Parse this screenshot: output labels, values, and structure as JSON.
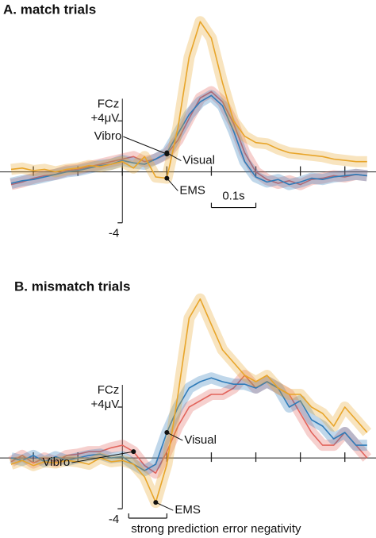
{
  "chart_data": [
    {
      "type": "line",
      "title": "A. match trials",
      "y_label": "FCz",
      "x": [
        -0.25,
        -0.225,
        -0.2,
        -0.175,
        -0.15,
        -0.125,
        -0.1,
        -0.075,
        -0.05,
        -0.025,
        0,
        0.025,
        0.05,
        0.075,
        0.1,
        0.125,
        0.15,
        0.175,
        0.2,
        0.225,
        0.25,
        0.275,
        0.3,
        0.325,
        0.35,
        0.375,
        0.4,
        0.425,
        0.45,
        0.475,
        0.5,
        0.525,
        0.55
      ],
      "xlim": [
        -0.275,
        0.57
      ],
      "xticks": [
        -0.2,
        -0.1,
        0,
        0.1,
        0.2,
        0.3,
        0.4,
        0.5
      ],
      "ylim": [
        -5.2,
        13.5
      ],
      "yticks": [
        {
          "value": 4,
          "label": "+4μV"
        },
        {
          "value": -4,
          "label": "-4"
        }
      ],
      "scale_bar": {
        "label": "0.1s",
        "length": 0.1
      },
      "series": [
        {
          "name": "Vibro",
          "color": "#e2645c",
          "values": [
            -1,
            -0.8,
            -0.5,
            -0.3,
            -0.2,
            0.1,
            0.2,
            0.4,
            0.6,
            0.8,
            1,
            1.2,
            0.8,
            1,
            1.4,
            2.5,
            4.2,
            5.8,
            6.3,
            5.5,
            3.8,
            1.5,
            0,
            -0.6,
            -0.9,
            -0.7,
            -1,
            -0.6,
            -0.5,
            -0.3,
            -0.4,
            -0.2,
            -0.3
          ]
        },
        {
          "name": "Visual",
          "color": "#2f7bb8",
          "values": [
            -0.9,
            -0.7,
            -0.6,
            -0.4,
            -0.2,
            0,
            0.1,
            0.3,
            0.5,
            0.6,
            0.9,
            0.7,
            0.6,
            1,
            1.5,
            3,
            4.5,
            5.5,
            6,
            5.2,
            3.2,
            0.8,
            -0.4,
            -0.8,
            -0.6,
            -1,
            -0.8,
            -0.5,
            -0.6,
            -0.4,
            -0.3,
            -0.2,
            -0.3
          ]
        },
        {
          "name": "EMS",
          "color": "#e8a52a",
          "values": [
            0.2,
            0.3,
            0.1,
            0.2,
            0,
            0.2,
            0.3,
            0.5,
            0.4,
            0.6,
            0.8,
            0.3,
            1.2,
            -0.4,
            -0.5,
            3.5,
            9,
            11.8,
            10.5,
            7,
            4,
            2.8,
            2.3,
            2.2,
            1.8,
            1.5,
            1.4,
            1.3,
            1.2,
            1,
            0.9,
            0.8,
            0.8
          ]
        }
      ]
    },
    {
      "type": "line",
      "title": "B. mismatch trials",
      "y_label": "FCz",
      "x": [
        -0.25,
        -0.225,
        -0.2,
        -0.175,
        -0.15,
        -0.125,
        -0.1,
        -0.075,
        -0.05,
        -0.025,
        0,
        0.025,
        0.05,
        0.075,
        0.1,
        0.125,
        0.15,
        0.175,
        0.2,
        0.225,
        0.25,
        0.275,
        0.3,
        0.325,
        0.35,
        0.375,
        0.4,
        0.425,
        0.45,
        0.475,
        0.5,
        0.525,
        0.55
      ],
      "xlim": [
        -0.275,
        0.57
      ],
      "xticks": [
        -0.2,
        -0.1,
        0,
        0.1,
        0.2,
        0.3,
        0.4,
        0.5
      ],
      "ylim": [
        -6.3,
        14.8
      ],
      "yticks": [
        {
          "value": 4,
          "label": "+4μV"
        },
        {
          "value": -4,
          "label": "-4"
        }
      ],
      "annotation": {
        "text": "strong prediction error negativity",
        "span": [
          0,
          0.1
        ]
      },
      "series": [
        {
          "name": "Vibro",
          "color": "#e2645c",
          "values": [
            -0.3,
            0.2,
            -0.4,
            0,
            -0.3,
            0.2,
            0.3,
            0.5,
            0.5,
            0.8,
            1,
            0.5,
            -0.6,
            -1.2,
            0.5,
            2.5,
            4,
            4.5,
            5,
            5,
            5.5,
            6.5,
            5.5,
            6,
            5.5,
            5,
            3.5,
            2,
            1,
            1,
            2,
            1,
            0
          ]
        },
        {
          "name": "Visual",
          "color": "#2f7bb8",
          "values": [
            0,
            -0.2,
            0.2,
            -0.3,
            0.1,
            -0.2,
            0,
            0.2,
            0.3,
            0,
            0.1,
            -0.5,
            -1,
            -0.5,
            2,
            4,
            5.5,
            6,
            6.3,
            6,
            5.8,
            5.8,
            5.5,
            6,
            5.5,
            4,
            4.5,
            3,
            2.5,
            1.5,
            2,
            1,
            1
          ]
        },
        {
          "name": "EMS",
          "color": "#e8a52a",
          "values": [
            -0.5,
            -0.2,
            -0.6,
            -0.3,
            -0.4,
            -0.2,
            -0.3,
            -0.5,
            0,
            -0.3,
            -0.2,
            -0.5,
            -1.5,
            -3.5,
            -0.5,
            5,
            11,
            12.5,
            10.5,
            8.5,
            7.5,
            6.5,
            6,
            6.5,
            5.5,
            5,
            5,
            4,
            3.5,
            2.5,
            4,
            3,
            2
          ]
        }
      ]
    }
  ]
}
